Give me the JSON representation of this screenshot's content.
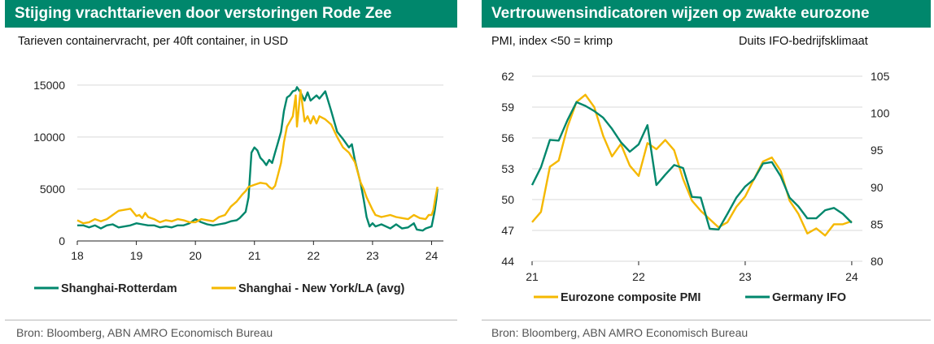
{
  "chart_data": [
    {
      "type": "line",
      "title": "Stijging vrachttarieven door verstoringen Rode Zee",
      "subtitle": "Tarieven containervracht, per 40ft container, in USD",
      "source": "Bron: Bloomberg, ABN AMRO Economisch Bureau",
      "x_ticks": [
        "18",
        "19",
        "20",
        "21",
        "22",
        "23",
        "24"
      ],
      "y_ticks": [
        "0",
        "5000",
        "10000",
        "15000"
      ],
      "xlim": [
        2018,
        2024.2
      ],
      "ylim": [
        0,
        16000
      ],
      "grid": "horizontal",
      "legend": "bottom",
      "series": [
        {
          "name": "Shanghai-Rotterdam",
          "color": "#00876c",
          "points": [
            [
              2018.0,
              1500
            ],
            [
              2018.1,
              1500
            ],
            [
              2018.2,
              1300
            ],
            [
              2018.3,
              1500
            ],
            [
              2018.4,
              1200
            ],
            [
              2018.5,
              1500
            ],
            [
              2018.6,
              1600
            ],
            [
              2018.7,
              1300
            ],
            [
              2018.8,
              1400
            ],
            [
              2018.9,
              1500
            ],
            [
              2019.0,
              1700
            ],
            [
              2019.1,
              1600
            ],
            [
              2019.2,
              1500
            ],
            [
              2019.3,
              1500
            ],
            [
              2019.4,
              1300
            ],
            [
              2019.5,
              1400
            ],
            [
              2019.6,
              1300
            ],
            [
              2019.7,
              1500
            ],
            [
              2019.8,
              1500
            ],
            [
              2019.9,
              1700
            ],
            [
              2020.0,
              2100
            ],
            [
              2020.1,
              1800
            ],
            [
              2020.2,
              1600
            ],
            [
              2020.3,
              1500
            ],
            [
              2020.4,
              1600
            ],
            [
              2020.5,
              1700
            ],
            [
              2020.6,
              1900
            ],
            [
              2020.7,
              2000
            ],
            [
              2020.75,
              2200
            ],
            [
              2020.8,
              2500
            ],
            [
              2020.85,
              2800
            ],
            [
              2020.9,
              4200
            ],
            [
              2020.95,
              8500
            ],
            [
              2021.0,
              9000
            ],
            [
              2021.05,
              8700
            ],
            [
              2021.1,
              8000
            ],
            [
              2021.15,
              7700
            ],
            [
              2021.2,
              7300
            ],
            [
              2021.25,
              7800
            ],
            [
              2021.3,
              7500
            ],
            [
              2021.35,
              8500
            ],
            [
              2021.4,
              9500
            ],
            [
              2021.45,
              10500
            ],
            [
              2021.5,
              12500
            ],
            [
              2021.55,
              13800
            ],
            [
              2021.6,
              14000
            ],
            [
              2021.65,
              14400
            ],
            [
              2021.7,
              14500
            ],
            [
              2021.72,
              14800
            ],
            [
              2021.78,
              14300
            ],
            [
              2021.85,
              13500
            ],
            [
              2021.9,
              14300
            ],
            [
              2021.95,
              13500
            ],
            [
              2022.05,
              14000
            ],
            [
              2022.1,
              13700
            ],
            [
              2022.2,
              14400
            ],
            [
              2022.3,
              12500
            ],
            [
              2022.4,
              10500
            ],
            [
              2022.5,
              9800
            ],
            [
              2022.6,
              9000
            ],
            [
              2022.65,
              9300
            ],
            [
              2022.7,
              7800
            ],
            [
              2022.8,
              5500
            ],
            [
              2022.85,
              4000
            ],
            [
              2022.9,
              2300
            ],
            [
              2022.95,
              1400
            ],
            [
              2023.0,
              1700
            ],
            [
              2023.05,
              1400
            ],
            [
              2023.15,
              1600
            ],
            [
              2023.3,
              1200
            ],
            [
              2023.4,
              1600
            ],
            [
              2023.5,
              1200
            ],
            [
              2023.6,
              1300
            ],
            [
              2023.7,
              1700
            ],
            [
              2023.75,
              1100
            ],
            [
              2023.85,
              1000
            ],
            [
              2023.9,
              1200
            ],
            [
              2024.0,
              1400
            ],
            [
              2024.05,
              2800
            ],
            [
              2024.08,
              4000
            ],
            [
              2024.1,
              5000
            ]
          ]
        },
        {
          "name": "Shanghai - New York/LA (avg)",
          "color": "#f5b800",
          "points": [
            [
              2018.0,
              2000
            ],
            [
              2018.1,
              1700
            ],
            [
              2018.2,
              1800
            ],
            [
              2018.3,
              2100
            ],
            [
              2018.4,
              1900
            ],
            [
              2018.5,
              2100
            ],
            [
              2018.6,
              2500
            ],
            [
              2018.7,
              2900
            ],
            [
              2018.8,
              3000
            ],
            [
              2018.9,
              3100
            ],
            [
              2019.0,
              2400
            ],
            [
              2019.05,
              2500
            ],
            [
              2019.1,
              2200
            ],
            [
              2019.15,
              2700
            ],
            [
              2019.2,
              2300
            ],
            [
              2019.3,
              2100
            ],
            [
              2019.4,
              1800
            ],
            [
              2019.5,
              2000
            ],
            [
              2019.6,
              1900
            ],
            [
              2019.7,
              2100
            ],
            [
              2019.8,
              2000
            ],
            [
              2019.9,
              1800
            ],
            [
              2020.0,
              1800
            ],
            [
              2020.1,
              2100
            ],
            [
              2020.2,
              2000
            ],
            [
              2020.3,
              1900
            ],
            [
              2020.4,
              2300
            ],
            [
              2020.5,
              2500
            ],
            [
              2020.6,
              3300
            ],
            [
              2020.7,
              3800
            ],
            [
              2020.8,
              4500
            ],
            [
              2020.85,
              4800
            ],
            [
              2020.9,
              5200
            ],
            [
              2021.0,
              5400
            ],
            [
              2021.05,
              5500
            ],
            [
              2021.1,
              5600
            ],
            [
              2021.2,
              5500
            ],
            [
              2021.25,
              5200
            ],
            [
              2021.3,
              5000
            ],
            [
              2021.35,
              5300
            ],
            [
              2021.4,
              6400
            ],
            [
              2021.45,
              7500
            ],
            [
              2021.5,
              9500
            ],
            [
              2021.55,
              11000
            ],
            [
              2021.6,
              11500
            ],
            [
              2021.65,
              12000
            ],
            [
              2021.7,
              14000
            ],
            [
              2021.72,
              11000
            ],
            [
              2021.78,
              14500
            ],
            [
              2021.85,
              11500
            ],
            [
              2021.9,
              12000
            ],
            [
              2021.95,
              11300
            ],
            [
              2022.0,
              12000
            ],
            [
              2022.05,
              11300
            ],
            [
              2022.1,
              12000
            ],
            [
              2022.2,
              11700
            ],
            [
              2022.3,
              11200
            ],
            [
              2022.4,
              10000
            ],
            [
              2022.5,
              9000
            ],
            [
              2022.6,
              8500
            ],
            [
              2022.7,
              7600
            ],
            [
              2022.8,
              5600
            ],
            [
              2022.85,
              5000
            ],
            [
              2022.9,
              4200
            ],
            [
              2023.0,
              3000
            ],
            [
              2023.05,
              2500
            ],
            [
              2023.15,
              2300
            ],
            [
              2023.3,
              2500
            ],
            [
              2023.4,
              2300
            ],
            [
              2023.5,
              2200
            ],
            [
              2023.6,
              2100
            ],
            [
              2023.7,
              2500
            ],
            [
              2023.8,
              2200
            ],
            [
              2023.9,
              2100
            ],
            [
              2023.95,
              2500
            ],
            [
              2024.0,
              2500
            ],
            [
              2024.03,
              3000
            ],
            [
              2024.06,
              4000
            ],
            [
              2024.1,
              5200
            ]
          ]
        }
      ]
    },
    {
      "type": "line",
      "title": "Vertrouwensindicatoren wijzen op zwakte eurozone",
      "subtitle_left": "PMI, index <50 = krimp",
      "subtitle_right": "Duits IFO-bedrijfsklimaat",
      "source": "Bron: Bloomberg, ABN AMRO Economisch Bureau",
      "x_ticks": [
        "21",
        "22",
        "23",
        "24"
      ],
      "y_ticks_left": [
        "44",
        "47",
        "50",
        "53",
        "56",
        "59",
        "62"
      ],
      "y_ticks_right": [
        "80",
        "85",
        "90",
        "95",
        "100",
        "105"
      ],
      "xlim": [
        2021.0,
        2024.1
      ],
      "ylim_left": [
        44,
        62
      ],
      "ylim_right": [
        80,
        105
      ],
      "grid": "horizontal",
      "legend": "bottom",
      "series": [
        {
          "name": "Eurozone composite PMI",
          "color": "#f5b800",
          "axis": "left",
          "points": [
            [
              2021.0,
              47.8
            ],
            [
              2021.083,
              48.8
            ],
            [
              2021.167,
              53.2
            ],
            [
              2021.25,
              53.8
            ],
            [
              2021.333,
              57.1
            ],
            [
              2021.417,
              59.5
            ],
            [
              2021.5,
              60.2
            ],
            [
              2021.583,
              59.0
            ],
            [
              2021.667,
              56.2
            ],
            [
              2021.75,
              54.2
            ],
            [
              2021.833,
              55.4
            ],
            [
              2021.917,
              53.3
            ],
            [
              2022.0,
              52.3
            ],
            [
              2022.083,
              55.5
            ],
            [
              2022.167,
              54.9
            ],
            [
              2022.25,
              55.8
            ],
            [
              2022.333,
              54.8
            ],
            [
              2022.417,
              52.0
            ],
            [
              2022.5,
              49.9
            ],
            [
              2022.583,
              48.9
            ],
            [
              2022.667,
              48.1
            ],
            [
              2022.75,
              47.3
            ],
            [
              2022.833,
              47.8
            ],
            [
              2022.917,
              49.3
            ],
            [
              2023.0,
              50.3
            ],
            [
              2023.083,
              52.0
            ],
            [
              2023.167,
              53.7
            ],
            [
              2023.25,
              54.1
            ],
            [
              2023.333,
              52.8
            ],
            [
              2023.417,
              49.9
            ],
            [
              2023.5,
              48.6
            ],
            [
              2023.583,
              46.7
            ],
            [
              2023.667,
              47.2
            ],
            [
              2023.75,
              46.5
            ],
            [
              2023.833,
              47.6
            ],
            [
              2023.917,
              47.6
            ],
            [
              2024.0,
              47.9
            ]
          ]
        },
        {
          "name": "Germany IFO",
          "color": "#00876c",
          "axis": "right",
          "points": [
            [
              2021.0,
              90.3
            ],
            [
              2021.083,
              92.7
            ],
            [
              2021.167,
              96.4
            ],
            [
              2021.25,
              96.3
            ],
            [
              2021.333,
              99.1
            ],
            [
              2021.417,
              101.5
            ],
            [
              2021.5,
              101.0
            ],
            [
              2021.583,
              100.3
            ],
            [
              2021.667,
              99.4
            ],
            [
              2021.75,
              97.9
            ],
            [
              2021.833,
              96.1
            ],
            [
              2021.917,
              94.8
            ],
            [
              2022.0,
              95.8
            ],
            [
              2022.083,
              98.4
            ],
            [
              2022.167,
              90.3
            ],
            [
              2022.25,
              91.7
            ],
            [
              2022.333,
              93.0
            ],
            [
              2022.417,
              92.6
            ],
            [
              2022.5,
              88.7
            ],
            [
              2022.583,
              88.6
            ],
            [
              2022.667,
              84.4
            ],
            [
              2022.75,
              84.3
            ],
            [
              2022.833,
              86.4
            ],
            [
              2022.917,
              88.6
            ],
            [
              2023.0,
              90.1
            ],
            [
              2023.083,
              91.1
            ],
            [
              2023.167,
              93.2
            ],
            [
              2023.25,
              93.4
            ],
            [
              2023.333,
              91.5
            ],
            [
              2023.417,
              88.6
            ],
            [
              2023.5,
              87.4
            ],
            [
              2023.583,
              85.8
            ],
            [
              2023.667,
              85.8
            ],
            [
              2023.75,
              86.9
            ],
            [
              2023.833,
              87.2
            ],
            [
              2023.917,
              86.4
            ],
            [
              2024.0,
              85.2
            ]
          ]
        }
      ]
    }
  ]
}
